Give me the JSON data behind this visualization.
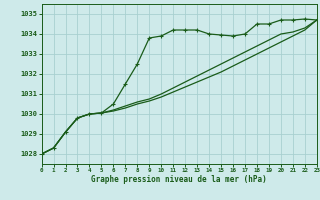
{
  "title": "Graphe pression niveau de la mer (hPa)",
  "background_color": "#ceeaea",
  "grid_color": "#a8d0d0",
  "line_color": "#1a5c1a",
  "xlim": [
    0,
    23
  ],
  "ylim": [
    1027.5,
    1035.5
  ],
  "yticks": [
    1028,
    1029,
    1030,
    1031,
    1032,
    1033,
    1034,
    1035
  ],
  "xticks": [
    0,
    1,
    2,
    3,
    4,
    5,
    6,
    7,
    8,
    9,
    10,
    11,
    12,
    13,
    14,
    15,
    16,
    17,
    18,
    19,
    20,
    21,
    22,
    23
  ],
  "series1_x": [
    0,
    1,
    2,
    3,
    4,
    5,
    6,
    7,
    8,
    9,
    10,
    11,
    12,
    13,
    14,
    15,
    16,
    17,
    18,
    19,
    20,
    21,
    22,
    23
  ],
  "series1_y": [
    1028.0,
    1028.3,
    1029.1,
    1029.8,
    1030.0,
    1030.05,
    1030.5,
    1031.5,
    1032.5,
    1033.8,
    1033.9,
    1034.2,
    1034.2,
    1034.2,
    1034.0,
    1033.95,
    1033.9,
    1034.0,
    1034.5,
    1034.5,
    1034.7,
    1034.7,
    1034.75,
    1034.7
  ],
  "series2_x": [
    0,
    1,
    2,
    3,
    4,
    5,
    6,
    7,
    8,
    9,
    10,
    11,
    12,
    13,
    14,
    15,
    16,
    17,
    18,
    19,
    20,
    21,
    22,
    23
  ],
  "series2_y": [
    1028.0,
    1028.3,
    1029.1,
    1029.8,
    1030.0,
    1030.05,
    1030.2,
    1030.4,
    1030.6,
    1030.75,
    1031.0,
    1031.3,
    1031.6,
    1031.9,
    1032.2,
    1032.5,
    1032.8,
    1033.1,
    1033.4,
    1033.7,
    1034.0,
    1034.1,
    1034.3,
    1034.7
  ],
  "series3_x": [
    0,
    1,
    2,
    3,
    4,
    5,
    6,
    7,
    8,
    9,
    10,
    11,
    12,
    13,
    14,
    15,
    16,
    17,
    18,
    19,
    20,
    21,
    22,
    23
  ],
  "series3_y": [
    1028.0,
    1028.3,
    1029.1,
    1029.8,
    1030.0,
    1030.05,
    1030.15,
    1030.3,
    1030.5,
    1030.65,
    1030.85,
    1031.1,
    1031.35,
    1031.6,
    1031.85,
    1032.1,
    1032.4,
    1032.7,
    1033.0,
    1033.3,
    1033.6,
    1033.9,
    1034.2,
    1034.7
  ]
}
